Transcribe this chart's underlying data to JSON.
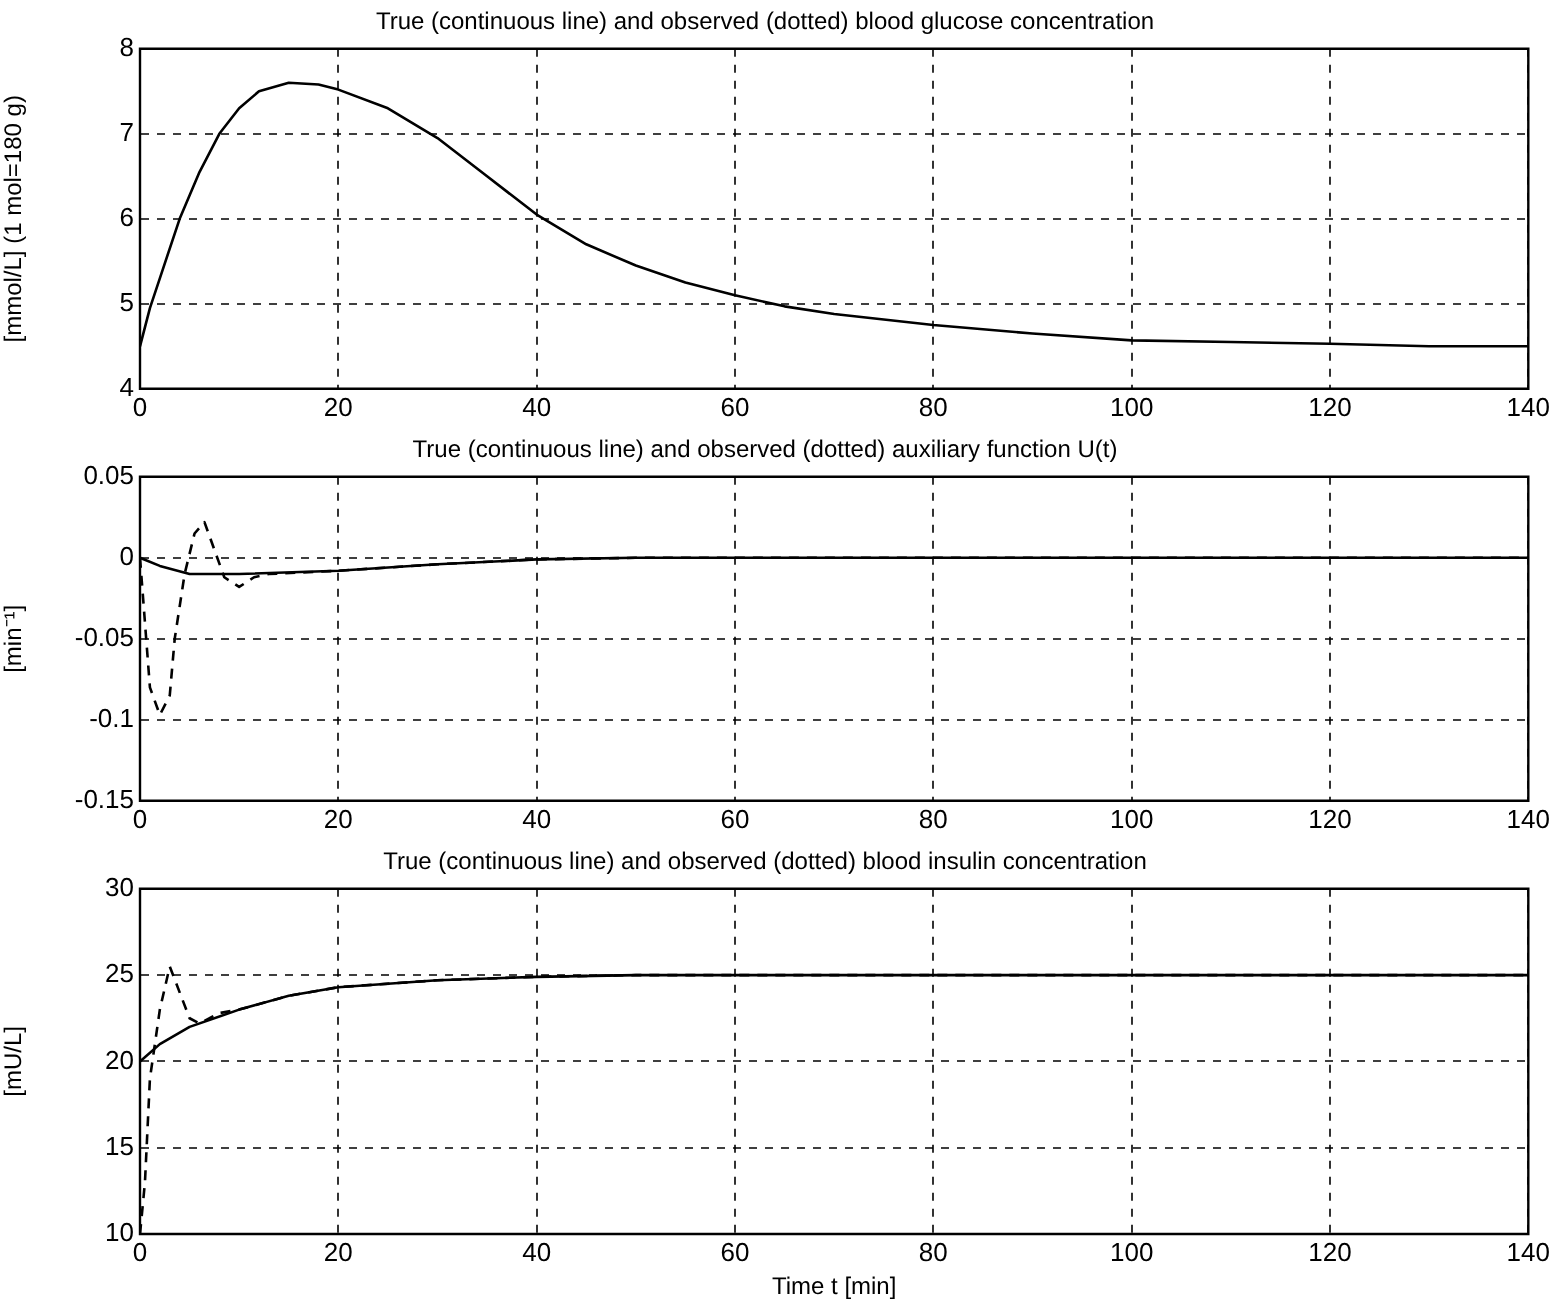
{
  "chart_data": [
    {
      "type": "line",
      "title": "True (continuous line) and observed (dotted) blood glucose concentration",
      "ylabel": "[mmol/L] (1 mol=180 g)",
      "xlim": [
        0,
        140
      ],
      "xticks": [
        0,
        20,
        40,
        60,
        80,
        100,
        120,
        140
      ],
      "ylim": [
        4,
        8
      ],
      "yticks": [
        4,
        5,
        6,
        7,
        8
      ],
      "grid": true,
      "marker": "none",
      "legend": false,
      "series": [
        {
          "color": "#000000",
          "line_style": "solid",
          "x": [
            0,
            1,
            2,
            4,
            6,
            8,
            10,
            12,
            15,
            18,
            20,
            25,
            30,
            35,
            40,
            45,
            50,
            55,
            60,
            65,
            70,
            80,
            90,
            100,
            110,
            120,
            130,
            140
          ],
          "values": [
            4.5,
            4.95,
            5.3,
            6.0,
            6.55,
            7.0,
            7.3,
            7.5,
            7.6,
            7.58,
            7.52,
            7.3,
            6.95,
            6.5,
            6.05,
            5.7,
            5.45,
            5.25,
            5.1,
            4.97,
            4.88,
            4.75,
            4.65,
            4.57,
            4.55,
            4.53,
            4.5,
            4.5
          ]
        }
      ]
    },
    {
      "type": "line",
      "title": "True (continuous line) and observed (dotted) auxiliary function U(t)",
      "ylabel": "[min⁻¹]",
      "xlim": [
        0,
        140
      ],
      "xticks": [
        0,
        20,
        40,
        60,
        80,
        100,
        120,
        140
      ],
      "ylim": [
        -0.15,
        0.05
      ],
      "yticks": [
        -0.15,
        -0.1,
        -0.05,
        0,
        0.05
      ],
      "grid": true,
      "marker": "none",
      "legend": false,
      "series": [
        {
          "color": "#000000",
          "line_style": "solid",
          "x": [
            0,
            2,
            5,
            10,
            20,
            30,
            40,
            50,
            140
          ],
          "values": [
            0,
            -0.005,
            -0.01,
            -0.01,
            -0.008,
            -0.004,
            -0.001,
            0,
            0
          ]
        },
        {
          "color": "#000000",
          "line_style": "dashed",
          "x": [
            0,
            0.5,
            1,
            2,
            3,
            3.5,
            4.5,
            5.5,
            6.5,
            7.5,
            8.5,
            10,
            11.5,
            13,
            20,
            30,
            40,
            50,
            140
          ],
          "values": [
            0,
            -0.04,
            -0.08,
            -0.097,
            -0.085,
            -0.05,
            -0.01,
            0.015,
            0.022,
            0.005,
            -0.012,
            -0.018,
            -0.012,
            -0.01,
            -0.008,
            -0.004,
            -0.001,
            0,
            0
          ]
        }
      ]
    },
    {
      "type": "line",
      "title": "True (continuous line) and observed (dotted) blood insulin concentration",
      "xlabel": "Time t [min]",
      "ylabel": "[mU/L]",
      "xlim": [
        0,
        140
      ],
      "xticks": [
        0,
        20,
        40,
        60,
        80,
        100,
        120,
        140
      ],
      "ylim": [
        10,
        30
      ],
      "yticks": [
        10,
        15,
        20,
        25,
        30
      ],
      "grid": true,
      "marker": "none",
      "legend": false,
      "series": [
        {
          "color": "#000000",
          "line_style": "solid",
          "x": [
            0,
            2,
            5,
            10,
            15,
            20,
            30,
            40,
            50,
            140
          ],
          "values": [
            20,
            21,
            22,
            23,
            23.8,
            24.3,
            24.7,
            24.9,
            25,
            25
          ]
        },
        {
          "color": "#000000",
          "line_style": "dashed",
          "x": [
            0,
            0.5,
            1,
            2,
            3,
            4,
            5,
            6,
            8,
            10,
            15,
            20,
            30,
            40,
            50,
            140
          ],
          "values": [
            10,
            13,
            19,
            23,
            25.5,
            24,
            22.5,
            22.2,
            22.8,
            23,
            23.8,
            24.3,
            24.7,
            24.9,
            25,
            25
          ]
        }
      ]
    }
  ]
}
